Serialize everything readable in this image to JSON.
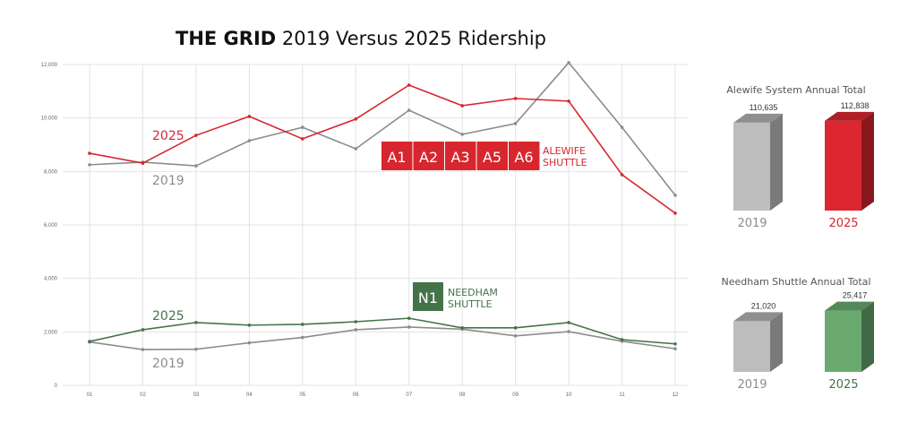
{
  "title": {
    "bold": "THE GRID",
    "rest": " 2019 Versus 2025 Ridership"
  },
  "colors": {
    "red": "#d7262e",
    "gray": "#8c8c8c",
    "green": "#44734a",
    "grid": "#e3e3e3"
  },
  "chart_data": [
    {
      "type": "line",
      "categories": [
        "01",
        "02",
        "03",
        "04",
        "05",
        "06",
        "07",
        "08",
        "09",
        "10",
        "11",
        "12"
      ],
      "ylim": [
        0,
        12000
      ],
      "yticks": [
        "0",
        "2,000",
        "4,000",
        "6,000",
        "8,000",
        "10,000",
        "12,000"
      ],
      "grid": true,
      "groups": [
        {
          "route_badges": [
            "A1",
            "A2",
            "A3",
            "A5",
            "A6"
          ],
          "route_name": [
            "ALEWIFE",
            "SHUTTLE"
          ],
          "series": [
            {
              "name": "2025",
              "color": "#d7262e",
              "values": [
                8680,
                8310,
                9350,
                10060,
                9220,
                9960,
                11230,
                10460,
                10730,
                10630,
                7880,
                6440
              ]
            },
            {
              "name": "2019",
              "color": "#8c8c8c",
              "values": [
                8250,
                8350,
                8210,
                9150,
                9650,
                8850,
                10290,
                9390,
                9790,
                12070,
                9650,
                7110
              ]
            }
          ]
        },
        {
          "route_badges": [
            "N1"
          ],
          "route_name": [
            "NEEDHAM",
            "SHUTTLE"
          ],
          "series": [
            {
              "name": "2025",
              "color": "#44734a",
              "values": [
                1640,
                2080,
                2350,
                2250,
                2280,
                2380,
                2510,
                2150,
                2150,
                2350,
                1710,
                1550
              ]
            },
            {
              "name": "2019",
              "color": "#8c8c8c",
              "values": [
                1620,
                1340,
                1350,
                1590,
                1790,
                2080,
                2180,
                2100,
                1850,
                2010,
                1650,
                1370
              ]
            }
          ]
        }
      ]
    },
    {
      "type": "bar",
      "title": "Alewife System Annual Total",
      "categories": [
        "2019",
        "2025"
      ],
      "values": [
        110635,
        112838
      ],
      "labels": [
        "110,635",
        "112,838"
      ],
      "colors": [
        "#bdbdbd",
        "#dc2630"
      ]
    },
    {
      "type": "bar",
      "title": "Needham Shuttle Annual Total",
      "categories": [
        "2019",
        "2025"
      ],
      "values": [
        21020,
        25417
      ],
      "labels": [
        "21,020",
        "25,417"
      ],
      "colors": [
        "#bdbdbd",
        "#6aaa6f"
      ]
    }
  ]
}
